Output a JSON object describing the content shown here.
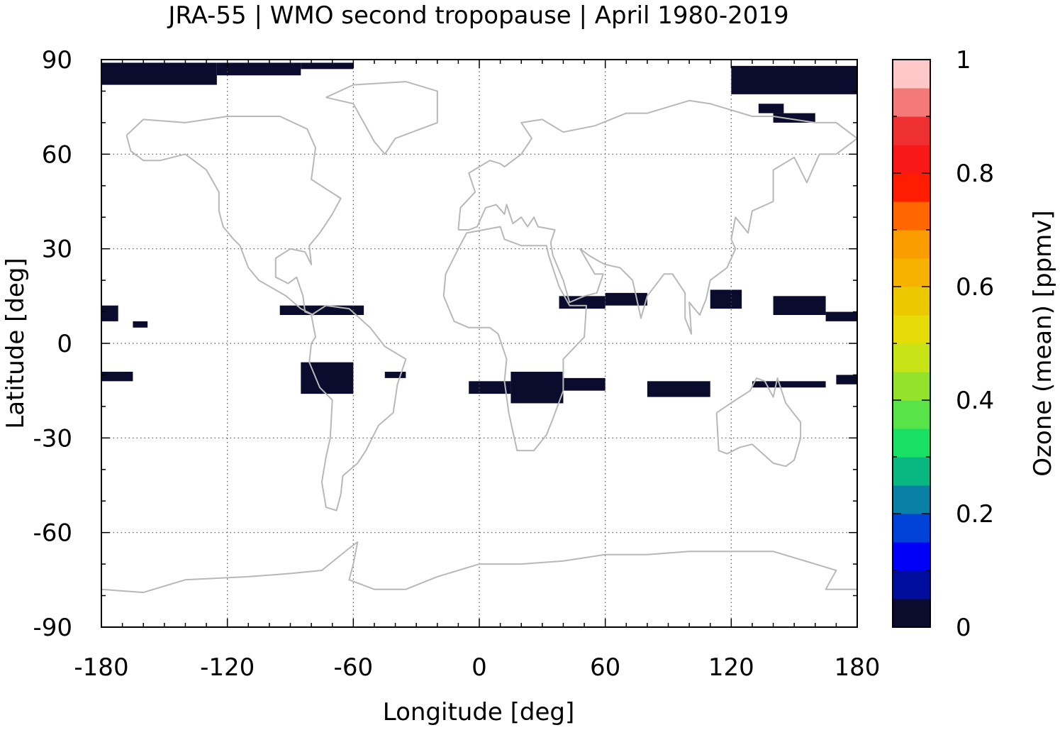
{
  "chart_data": {
    "type": "heatmap",
    "title": "JRA-55 | WMO second tropopause | April 1980-2019",
    "xlabel": "Longitude [deg]",
    "ylabel": "Latitude [deg]",
    "colorbar_label": "Ozone (mean) [ppmv]",
    "xlim": [
      -180,
      180
    ],
    "ylim": [
      -90,
      90
    ],
    "xticks": [
      -180,
      -120,
      -60,
      0,
      60,
      120,
      180
    ],
    "xtick_labels": [
      "-180",
      "-120",
      "-60",
      "0",
      "60",
      "120",
      "180"
    ],
    "yticks": [
      -90,
      -60,
      -30,
      0,
      30,
      60,
      90
    ],
    "ytick_labels": [
      "-90",
      "-60",
      "-30",
      "0",
      "30",
      "60",
      "90"
    ],
    "grid": true,
    "colorbar": {
      "range": [
        0,
        1
      ],
      "ticks": [
        0,
        0.2,
        0.4,
        0.6,
        0.8,
        1
      ],
      "tick_labels": [
        "0",
        "0.2",
        "0.4",
        "0.6",
        "0.8",
        "1"
      ],
      "colors": [
        "#0b0b2e",
        "#000e9e",
        "#0000f8",
        "#0042d8",
        "#0a80a6",
        "#08b880",
        "#18e064",
        "#58e448",
        "#94e22c",
        "#c8e416",
        "#e6dc08",
        "#ecc800",
        "#f5b300",
        "#fa9d00",
        "#ff6700",
        "#ff1c00",
        "#f81818",
        "#ee3030",
        "#f47a7a",
        "#ffc8c8"
      ]
    },
    "regions_value_0_to_0.05": [
      {
        "lon": [
          -180,
          -125
        ],
        "lat": [
          82,
          89
        ]
      },
      {
        "lon": [
          -125,
          -85
        ],
        "lat": [
          85,
          89
        ]
      },
      {
        "lon": [
          -85,
          -60
        ],
        "lat": [
          87,
          89
        ]
      },
      {
        "lon": [
          120,
          180
        ],
        "lat": [
          79,
          88
        ]
      },
      {
        "lon": [
          -180,
          -172
        ],
        "lat": [
          7,
          12
        ]
      },
      {
        "lon": [
          -165,
          -158
        ],
        "lat": [
          5,
          7
        ]
      },
      {
        "lon": [
          -95,
          -55
        ],
        "lat": [
          9,
          12
        ]
      },
      {
        "lon": [
          38,
          60
        ],
        "lat": [
          11,
          15
        ]
      },
      {
        "lon": [
          60,
          80
        ],
        "lat": [
          12,
          16
        ]
      },
      {
        "lon": [
          110,
          125
        ],
        "lat": [
          11,
          17
        ]
      },
      {
        "lon": [
          140,
          165
        ],
        "lat": [
          9,
          15
        ]
      },
      {
        "lon": [
          165,
          180
        ],
        "lat": [
          7,
          10
        ]
      },
      {
        "lon": [
          -180,
          -165
        ],
        "lat": [
          -12,
          -9
        ]
      },
      {
        "lon": [
          -85,
          -60
        ],
        "lat": [
          -16,
          -6
        ]
      },
      {
        "lon": [
          -45,
          -35
        ],
        "lat": [
          -11,
          -9
        ]
      },
      {
        "lon": [
          -5,
          15
        ],
        "lat": [
          -16,
          -12
        ]
      },
      {
        "lon": [
          15,
          40
        ],
        "lat": [
          -19,
          -9
        ]
      },
      {
        "lon": [
          40,
          60
        ],
        "lat": [
          -15,
          -11
        ]
      },
      {
        "lon": [
          80,
          110
        ],
        "lat": [
          -17,
          -12
        ]
      },
      {
        "lon": [
          130,
          165
        ],
        "lat": [
          -14,
          -12
        ]
      },
      {
        "lon": [
          170,
          180
        ],
        "lat": [
          -13,
          -10
        ]
      },
      {
        "lon": [
          140,
          160
        ],
        "lat": [
          70,
          73
        ]
      },
      {
        "lon": [
          133,
          145
        ],
        "lat": [
          73,
          76
        ]
      }
    ]
  }
}
